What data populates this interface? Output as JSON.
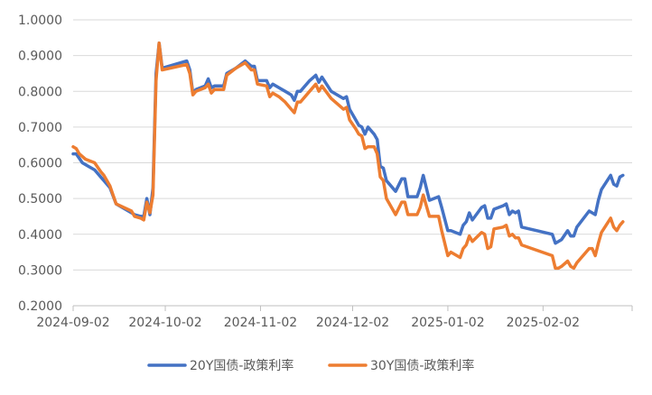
{
  "chart_data": {
    "type": "line",
    "title": "",
    "xlabel": "",
    "ylabel": "",
    "ylim": [
      0.2,
      1.0
    ],
    "y_ticks": [
      "0.2000",
      "0.3000",
      "0.4000",
      "0.5000",
      "0.6000",
      "0.7000",
      "0.8000",
      "0.9000",
      "1.0000"
    ],
    "x_ticks": [
      "2024-09-02",
      "2024-10-02",
      "2024-11-02",
      "2024-12-02",
      "2025-01-02",
      "2025-02-02"
    ],
    "xlim": [
      "2024-09-02",
      "2025-03-03"
    ],
    "grid": "horizontal",
    "legend_position": "bottom",
    "colors": {
      "20Y": "#4472C4",
      "30Y": "#ED7D31"
    },
    "series": [
      {
        "name": "20Y国债-政策利率",
        "color": "#4472C4",
        "points": [
          [
            "2024-09-02",
            0.625
          ],
          [
            "2024-09-03",
            0.625
          ],
          [
            "2024-09-05",
            0.6
          ],
          [
            "2024-09-07",
            0.59
          ],
          [
            "2024-09-09",
            0.58
          ],
          [
            "2024-09-11",
            0.56
          ],
          [
            "2024-09-12",
            0.55
          ],
          [
            "2024-09-14",
            0.53
          ],
          [
            "2024-09-16",
            0.485
          ],
          [
            "2024-09-21",
            0.46
          ],
          [
            "2024-09-22",
            0.455
          ],
          [
            "2024-09-24",
            0.45
          ],
          [
            "2024-09-25",
            0.45
          ],
          [
            "2024-09-26",
            0.5
          ],
          [
            "2024-09-27",
            0.455
          ],
          [
            "2024-09-28",
            0.53
          ],
          [
            "2024-09-29",
            0.85
          ],
          [
            "2024-09-30",
            0.935
          ],
          [
            "2024-10-01",
            0.865
          ],
          [
            "2024-10-09",
            0.885
          ],
          [
            "2024-10-10",
            0.86
          ],
          [
            "2024-10-11",
            0.795
          ],
          [
            "2024-10-12",
            0.805
          ],
          [
            "2024-10-15",
            0.815
          ],
          [
            "2024-10-16",
            0.835
          ],
          [
            "2024-10-17",
            0.81
          ],
          [
            "2024-10-18",
            0.815
          ],
          [
            "2024-10-21",
            0.815
          ],
          [
            "2024-10-22",
            0.85
          ],
          [
            "2024-10-25",
            0.865
          ],
          [
            "2024-10-28",
            0.885
          ],
          [
            "2024-10-30",
            0.87
          ],
          [
            "2024-10-31",
            0.87
          ],
          [
            "2024-11-01",
            0.83
          ],
          [
            "2024-11-04",
            0.83
          ],
          [
            "2024-11-05",
            0.81
          ],
          [
            "2024-11-06",
            0.82
          ],
          [
            "2024-11-08",
            0.81
          ],
          [
            "2024-11-10",
            0.8
          ],
          [
            "2024-11-12",
            0.79
          ],
          [
            "2024-11-13",
            0.775
          ],
          [
            "2024-11-14",
            0.8
          ],
          [
            "2024-11-15",
            0.8
          ],
          [
            "2024-11-18",
            0.83
          ],
          [
            "2024-11-20",
            0.845
          ],
          [
            "2024-11-21",
            0.825
          ],
          [
            "2024-11-22",
            0.84
          ],
          [
            "2024-11-25",
            0.8
          ],
          [
            "2024-11-27",
            0.79
          ],
          [
            "2024-11-29",
            0.78
          ],
          [
            "2024-11-30",
            0.785
          ],
          [
            "2024-12-01",
            0.75
          ],
          [
            "2024-12-03",
            0.72
          ],
          [
            "2024-12-04",
            0.705
          ],
          [
            "2024-12-05",
            0.7
          ],
          [
            "2024-12-06",
            0.68
          ],
          [
            "2024-12-07",
            0.7
          ],
          [
            "2024-12-09",
            0.68
          ],
          [
            "2024-12-10",
            0.665
          ],
          [
            "2024-12-11",
            0.59
          ],
          [
            "2024-12-12",
            0.585
          ],
          [
            "2024-12-13",
            0.55
          ],
          [
            "2024-12-16",
            0.52
          ],
          [
            "2024-12-18",
            0.555
          ],
          [
            "2024-12-19",
            0.555
          ],
          [
            "2024-12-20",
            0.505
          ],
          [
            "2024-12-23",
            0.505
          ],
          [
            "2024-12-24",
            0.53
          ],
          [
            "2024-12-25",
            0.565
          ],
          [
            "2024-12-27",
            0.495
          ],
          [
            "2024-12-30",
            0.505
          ],
          [
            "2024-12-31",
            0.475
          ],
          [
            "2025-01-02",
            0.41
          ],
          [
            "2025-01-03",
            0.41
          ],
          [
            "2025-01-06",
            0.4
          ],
          [
            "2025-01-07",
            0.425
          ],
          [
            "2025-01-08",
            0.435
          ],
          [
            "2025-01-09",
            0.46
          ],
          [
            "2025-01-10",
            0.44
          ],
          [
            "2025-01-13",
            0.475
          ],
          [
            "2025-01-14",
            0.48
          ],
          [
            "2025-01-15",
            0.445
          ],
          [
            "2025-01-16",
            0.445
          ],
          [
            "2025-01-17",
            0.47
          ],
          [
            "2025-01-20",
            0.48
          ],
          [
            "2025-01-21",
            0.485
          ],
          [
            "2025-01-22",
            0.455
          ],
          [
            "2025-01-23",
            0.465
          ],
          [
            "2025-01-24",
            0.46
          ],
          [
            "2025-01-25",
            0.465
          ],
          [
            "2025-01-26",
            0.42
          ],
          [
            "2025-02-05",
            0.4
          ],
          [
            "2025-02-06",
            0.375
          ],
          [
            "2025-02-07",
            0.38
          ],
          [
            "2025-02-08",
            0.385
          ],
          [
            "2025-02-10",
            0.41
          ],
          [
            "2025-02-11",
            0.395
          ],
          [
            "2025-02-12",
            0.395
          ],
          [
            "2025-02-13",
            0.42
          ],
          [
            "2025-02-17",
            0.465
          ],
          [
            "2025-02-18",
            0.46
          ],
          [
            "2025-02-19",
            0.455
          ],
          [
            "2025-02-20",
            0.495
          ],
          [
            "2025-02-21",
            0.525
          ],
          [
            "2025-02-24",
            0.565
          ],
          [
            "2025-02-25",
            0.54
          ],
          [
            "2025-02-26",
            0.535
          ],
          [
            "2025-02-27",
            0.56
          ],
          [
            "2025-02-28",
            0.565
          ]
        ]
      },
      {
        "name": "30Y国债-政策利率",
        "color": "#ED7D31",
        "points": [
          [
            "2024-09-02",
            0.645
          ],
          [
            "2024-09-03",
            0.64
          ],
          [
            "2024-09-04",
            0.625
          ],
          [
            "2024-09-06",
            0.61
          ],
          [
            "2024-09-09",
            0.6
          ],
          [
            "2024-09-11",
            0.575
          ],
          [
            "2024-09-12",
            0.565
          ],
          [
            "2024-09-14",
            0.535
          ],
          [
            "2024-09-16",
            0.485
          ],
          [
            "2024-09-21",
            0.465
          ],
          [
            "2024-09-22",
            0.45
          ],
          [
            "2024-09-24",
            0.445
          ],
          [
            "2024-09-25",
            0.44
          ],
          [
            "2024-09-26",
            0.49
          ],
          [
            "2024-09-27",
            0.46
          ],
          [
            "2024-09-28",
            0.51
          ],
          [
            "2024-09-29",
            0.83
          ],
          [
            "2024-09-30",
            0.935
          ],
          [
            "2024-10-01",
            0.86
          ],
          [
            "2024-10-09",
            0.875
          ],
          [
            "2024-10-10",
            0.85
          ],
          [
            "2024-10-11",
            0.79
          ],
          [
            "2024-10-12",
            0.8
          ],
          [
            "2024-10-15",
            0.81
          ],
          [
            "2024-10-16",
            0.82
          ],
          [
            "2024-10-17",
            0.795
          ],
          [
            "2024-10-18",
            0.805
          ],
          [
            "2024-10-21",
            0.805
          ],
          [
            "2024-10-22",
            0.845
          ],
          [
            "2024-10-25",
            0.865
          ],
          [
            "2024-10-28",
            0.88
          ],
          [
            "2024-10-30",
            0.86
          ],
          [
            "2024-10-31",
            0.86
          ],
          [
            "2024-11-01",
            0.82
          ],
          [
            "2024-11-04",
            0.815
          ],
          [
            "2024-11-05",
            0.785
          ],
          [
            "2024-11-06",
            0.795
          ],
          [
            "2024-11-08",
            0.785
          ],
          [
            "2024-11-10",
            0.77
          ],
          [
            "2024-11-12",
            0.75
          ],
          [
            "2024-11-13",
            0.74
          ],
          [
            "2024-11-14",
            0.77
          ],
          [
            "2024-11-15",
            0.77
          ],
          [
            "2024-11-18",
            0.8
          ],
          [
            "2024-11-20",
            0.82
          ],
          [
            "2024-11-21",
            0.8
          ],
          [
            "2024-11-22",
            0.815
          ],
          [
            "2024-11-25",
            0.78
          ],
          [
            "2024-11-27",
            0.765
          ],
          [
            "2024-11-29",
            0.75
          ],
          [
            "2024-11-30",
            0.755
          ],
          [
            "2024-12-01",
            0.72
          ],
          [
            "2024-12-03",
            0.695
          ],
          [
            "2024-12-04",
            0.68
          ],
          [
            "2024-12-05",
            0.675
          ],
          [
            "2024-12-06",
            0.64
          ],
          [
            "2024-12-07",
            0.645
          ],
          [
            "2024-12-09",
            0.645
          ],
          [
            "2024-12-10",
            0.625
          ],
          [
            "2024-12-11",
            0.56
          ],
          [
            "2024-12-12",
            0.55
          ],
          [
            "2024-12-13",
            0.5
          ],
          [
            "2024-12-16",
            0.455
          ],
          [
            "2024-12-18",
            0.49
          ],
          [
            "2024-12-19",
            0.49
          ],
          [
            "2024-12-20",
            0.455
          ],
          [
            "2024-12-23",
            0.455
          ],
          [
            "2024-12-24",
            0.475
          ],
          [
            "2024-12-25",
            0.51
          ],
          [
            "2024-12-27",
            0.45
          ],
          [
            "2024-12-30",
            0.45
          ],
          [
            "2024-12-31",
            0.41
          ],
          [
            "2025-01-02",
            0.34
          ],
          [
            "2025-01-03",
            0.35
          ],
          [
            "2025-01-06",
            0.335
          ],
          [
            "2025-01-07",
            0.36
          ],
          [
            "2025-01-08",
            0.37
          ],
          [
            "2025-01-09",
            0.395
          ],
          [
            "2025-01-10",
            0.38
          ],
          [
            "2025-01-13",
            0.405
          ],
          [
            "2025-01-14",
            0.4
          ],
          [
            "2025-01-15",
            0.36
          ],
          [
            "2025-01-16",
            0.365
          ],
          [
            "2025-01-17",
            0.415
          ],
          [
            "2025-01-20",
            0.42
          ],
          [
            "2025-01-21",
            0.425
          ],
          [
            "2025-01-22",
            0.395
          ],
          [
            "2025-01-23",
            0.4
          ],
          [
            "2025-01-24",
            0.39
          ],
          [
            "2025-01-25",
            0.39
          ],
          [
            "2025-01-26",
            0.37
          ],
          [
            "2025-02-05",
            0.34
          ],
          [
            "2025-02-06",
            0.305
          ],
          [
            "2025-02-07",
            0.305
          ],
          [
            "2025-02-08",
            0.31
          ],
          [
            "2025-02-10",
            0.325
          ],
          [
            "2025-02-11",
            0.31
          ],
          [
            "2025-02-12",
            0.305
          ],
          [
            "2025-02-13",
            0.32
          ],
          [
            "2025-02-17",
            0.36
          ],
          [
            "2025-02-18",
            0.36
          ],
          [
            "2025-02-19",
            0.34
          ],
          [
            "2025-02-20",
            0.375
          ],
          [
            "2025-02-21",
            0.405
          ],
          [
            "2025-02-24",
            0.445
          ],
          [
            "2025-02-25",
            0.42
          ],
          [
            "2025-02-26",
            0.41
          ],
          [
            "2025-02-27",
            0.425
          ],
          [
            "2025-02-28",
            0.435
          ]
        ]
      }
    ]
  }
}
